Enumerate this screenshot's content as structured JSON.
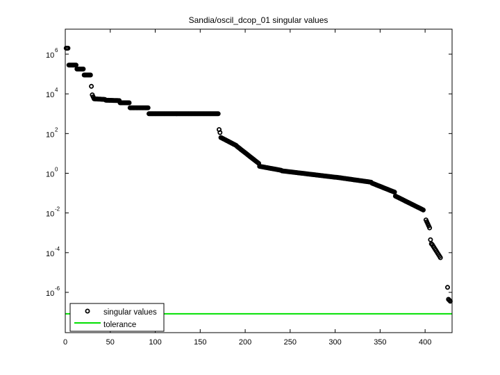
{
  "chart_data": {
    "type": "scatter",
    "title": "Sandia/oscil_dcop_01 singular values",
    "xlabel": "",
    "ylabel": "",
    "yscale": "log",
    "xlim": [
      0,
      430
    ],
    "ylim_log10": [
      -8.03,
      7.26
    ],
    "x_ticks": [
      0,
      50,
      100,
      150,
      200,
      250,
      300,
      350,
      400
    ],
    "y_ticks_log10": [
      6,
      4,
      2,
      0,
      -2,
      -4,
      -6
    ],
    "grid": false,
    "legend": {
      "position": "lower-left",
      "entries": [
        "singular values",
        "tolerance"
      ]
    },
    "colors": {
      "singular_values": "#000000",
      "tolerance": "#00e000"
    },
    "series": [
      {
        "name": "singular values",
        "marker": "circle",
        "segments_log10": [
          {
            "x_from": 1,
            "x_to": 3,
            "log10_from": 6.3,
            "log10_to": 6.3
          },
          {
            "x_from": 4,
            "x_to": 12,
            "log10_from": 5.45,
            "log10_to": 5.45
          },
          {
            "x_from": 13,
            "x_to": 20,
            "log10_from": 5.25,
            "log10_to": 5.25
          },
          {
            "x_from": 21,
            "x_to": 28,
            "log10_from": 4.95,
            "log10_to": 4.95
          },
          {
            "x_from": 29,
            "x_to": 29,
            "log10_from": 4.38,
            "log10_to": 4.38
          },
          {
            "x_from": 30,
            "x_to": 31,
            "log10_from": 3.95,
            "log10_to": 3.85
          },
          {
            "x_from": 32,
            "x_to": 44,
            "log10_from": 3.75,
            "log10_to": 3.72
          },
          {
            "x_from": 45,
            "x_to": 60,
            "log10_from": 3.68,
            "log10_to": 3.66
          },
          {
            "x_from": 61,
            "x_to": 71,
            "log10_from": 3.55,
            "log10_to": 3.55
          },
          {
            "x_from": 72,
            "x_to": 92,
            "log10_from": 3.3,
            "log10_to": 3.3
          },
          {
            "x_from": 93,
            "x_to": 170,
            "log10_from": 3.0,
            "log10_to": 3.0
          },
          {
            "x_from": 171,
            "x_to": 172,
            "log10_from": 2.2,
            "log10_to": 2.05
          },
          {
            "x_from": 173,
            "x_to": 190,
            "log10_from": 1.8,
            "log10_to": 1.4
          },
          {
            "x_from": 191,
            "x_to": 215,
            "log10_from": 1.35,
            "log10_to": 0.5
          },
          {
            "x_from": 216,
            "x_to": 240,
            "log10_from": 0.35,
            "log10_to": 0.15
          },
          {
            "x_from": 241,
            "x_to": 300,
            "log10_from": 0.12,
            "log10_to": -0.2
          },
          {
            "x_from": 301,
            "x_to": 340,
            "log10_from": -0.2,
            "log10_to": -0.45
          },
          {
            "x_from": 341,
            "x_to": 366,
            "log10_from": -0.5,
            "log10_to": -0.95
          },
          {
            "x_from": 367,
            "x_to": 398,
            "log10_from": -1.15,
            "log10_to": -1.85
          },
          {
            "x_from": 401,
            "x_to": 405,
            "log10_from": -2.35,
            "log10_to": -2.75
          },
          {
            "x_from": 406,
            "x_to": 407,
            "log10_from": -3.35,
            "log10_to": -3.55
          },
          {
            "x_from": 408,
            "x_to": 417,
            "log10_from": -3.6,
            "log10_to": -4.25
          },
          {
            "x_from": 425,
            "x_to": 425,
            "log10_from": -5.75,
            "log10_to": -5.75
          },
          {
            "x_from": 426,
            "x_to": 428,
            "log10_from": -6.35,
            "log10_to": -6.45
          }
        ]
      },
      {
        "name": "tolerance",
        "line": true,
        "log10_value": -7.08,
        "approx_value": 8.3e-08
      }
    ]
  },
  "axes": {
    "title": "Sandia/oscil_dcop_01 singular values",
    "x_tick_labels": [
      "0",
      "50",
      "100",
      "150",
      "200",
      "250",
      "300",
      "350",
      "400"
    ],
    "y_tick_labels": [
      {
        "base": "10",
        "exp": "6"
      },
      {
        "base": "10",
        "exp": "4"
      },
      {
        "base": "10",
        "exp": "2"
      },
      {
        "base": "10",
        "exp": "0"
      },
      {
        "base": "10",
        "exp": "-2"
      },
      {
        "base": "10",
        "exp": "-4"
      },
      {
        "base": "10",
        "exp": "-6"
      }
    ]
  },
  "legend": {
    "entry_1": "singular values",
    "entry_2": "tolerance"
  }
}
